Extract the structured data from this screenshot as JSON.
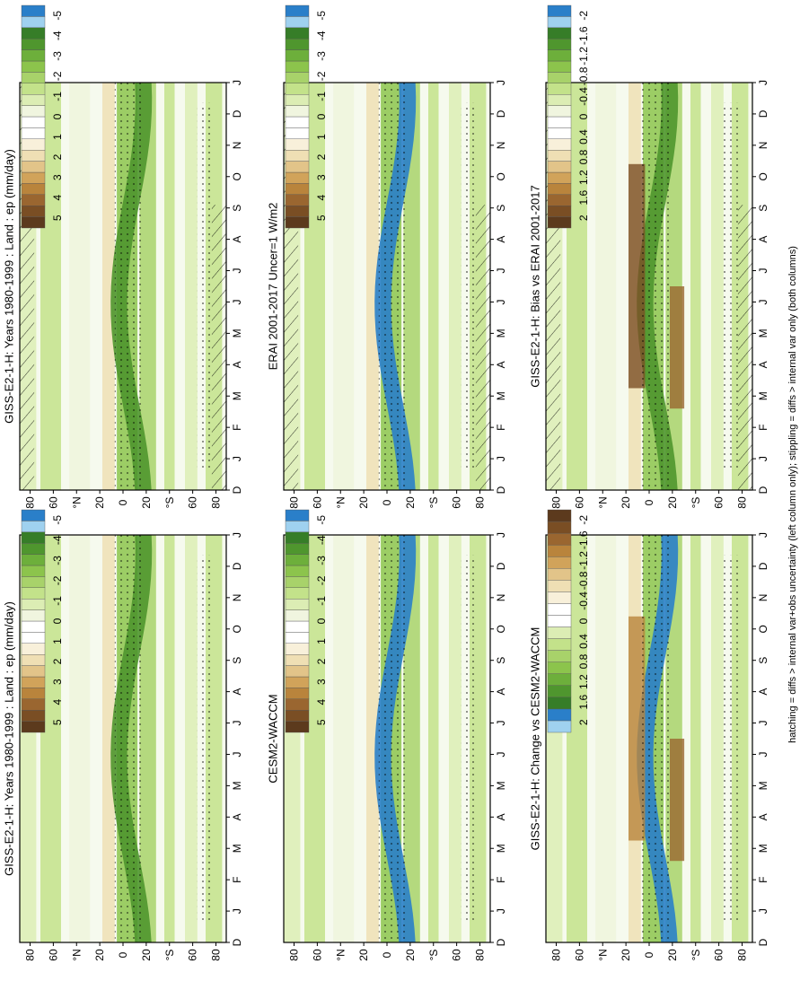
{
  "figure": {
    "footnote": "hatching = diffs > internal var+obs uncertainty (left column only); stippling = diffs > internal var only (both columns)"
  },
  "chart_data": [
    {
      "type": "heatmap",
      "title": "GISS-E2-1-H: Years 1980-1999 : Land : ep (mm/day)",
      "months": [
        "D",
        "J",
        "F",
        "M",
        "A",
        "M",
        "J",
        "J",
        "A",
        "S",
        "O",
        "N",
        "D",
        "J"
      ],
      "lat_ticks": [
        "80",
        "60",
        "°N",
        "20",
        "0",
        "20",
        "°S",
        "60",
        "80"
      ],
      "colorbar": {
        "labels": [
          "5",
          "4",
          "3",
          "2",
          "1",
          "0",
          "-1",
          "-2",
          "-3",
          "-4",
          "-5"
        ],
        "palette": "brown-green"
      },
      "hatching": true
    },
    {
      "type": "heatmap",
      "title": "GISS-E2-1-H: Years 1980-1999 : Land : ep (mm/day)",
      "months": [
        "D",
        "J",
        "F",
        "M",
        "A",
        "M",
        "J",
        "J",
        "A",
        "S",
        "O",
        "N",
        "D",
        "J"
      ],
      "lat_ticks": [
        "80",
        "60",
        "°N",
        "20",
        "0",
        "20",
        "°S",
        "60",
        "80"
      ],
      "colorbar": {
        "labels": [
          "5",
          "4",
          "3",
          "2",
          "1",
          "0",
          "-1",
          "-2",
          "-3",
          "-4",
          "-5"
        ],
        "palette": "brown-green"
      },
      "hatching": false
    },
    {
      "type": "heatmap",
      "title": "ERAI 2001-2017 Uncer=1 W/m2",
      "months": [
        "D",
        "J",
        "F",
        "M",
        "A",
        "M",
        "J",
        "J",
        "A",
        "S",
        "O",
        "N",
        "D",
        "J"
      ],
      "lat_ticks": [
        "80",
        "60",
        "°N",
        "20",
        "0",
        "20",
        "°S",
        "60",
        "80"
      ],
      "colorbar": {
        "labels": [
          "5",
          "4",
          "3",
          "2",
          "1",
          "0",
          "-1",
          "-2",
          "-3",
          "-4",
          "-5"
        ],
        "palette": "brown-green"
      },
      "hatching": true
    },
    {
      "type": "heatmap",
      "title": "CESM2-WACCM",
      "months": [
        "D",
        "J",
        "F",
        "M",
        "A",
        "M",
        "J",
        "J",
        "A",
        "S",
        "O",
        "N",
        "D",
        "J"
      ],
      "lat_ticks": [
        "80",
        "60",
        "°N",
        "20",
        "0",
        "20",
        "°S",
        "60",
        "80"
      ],
      "colorbar": {
        "labels": [
          "5",
          "4",
          "3",
          "2",
          "1",
          "0",
          "-1",
          "-2",
          "-3",
          "-4",
          "-5"
        ],
        "palette": "brown-green"
      },
      "hatching": false
    },
    {
      "type": "heatmap",
      "title": "GISS-E2-1-H: Bias vs ERAI 2001-2017",
      "months": [
        "D",
        "J",
        "F",
        "M",
        "A",
        "M",
        "J",
        "J",
        "A",
        "S",
        "O",
        "N",
        "D",
        "J"
      ],
      "lat_ticks": [
        "80",
        "60",
        "°N",
        "20",
        "0",
        "20",
        "°S",
        "60",
        "80"
      ],
      "colorbar": {
        "labels": [
          "2",
          "1.6",
          "1.2",
          "0.8",
          "0.4",
          "0",
          "-0.4",
          "-0.8",
          "-1.2",
          "-1.6",
          "-2"
        ],
        "palette": "brown-green"
      },
      "hatching": true
    },
    {
      "type": "heatmap",
      "title": "GISS-E2-1-H: Change vs CESM2-WACCM",
      "months": [
        "D",
        "J",
        "F",
        "M",
        "A",
        "M",
        "J",
        "J",
        "A",
        "S",
        "O",
        "N",
        "D",
        "J"
      ],
      "lat_ticks": [
        "80",
        "60",
        "°N",
        "20",
        "0",
        "20",
        "°S",
        "60",
        "80"
      ],
      "colorbar": {
        "labels": [
          "2",
          "1.6",
          "1.2",
          "0.8",
          "0.4",
          "0",
          "-0.4",
          "-0.8",
          "-1.2",
          "-1.6",
          "-2"
        ],
        "palette": "blue-green-brown"
      },
      "hatching": false
    }
  ]
}
